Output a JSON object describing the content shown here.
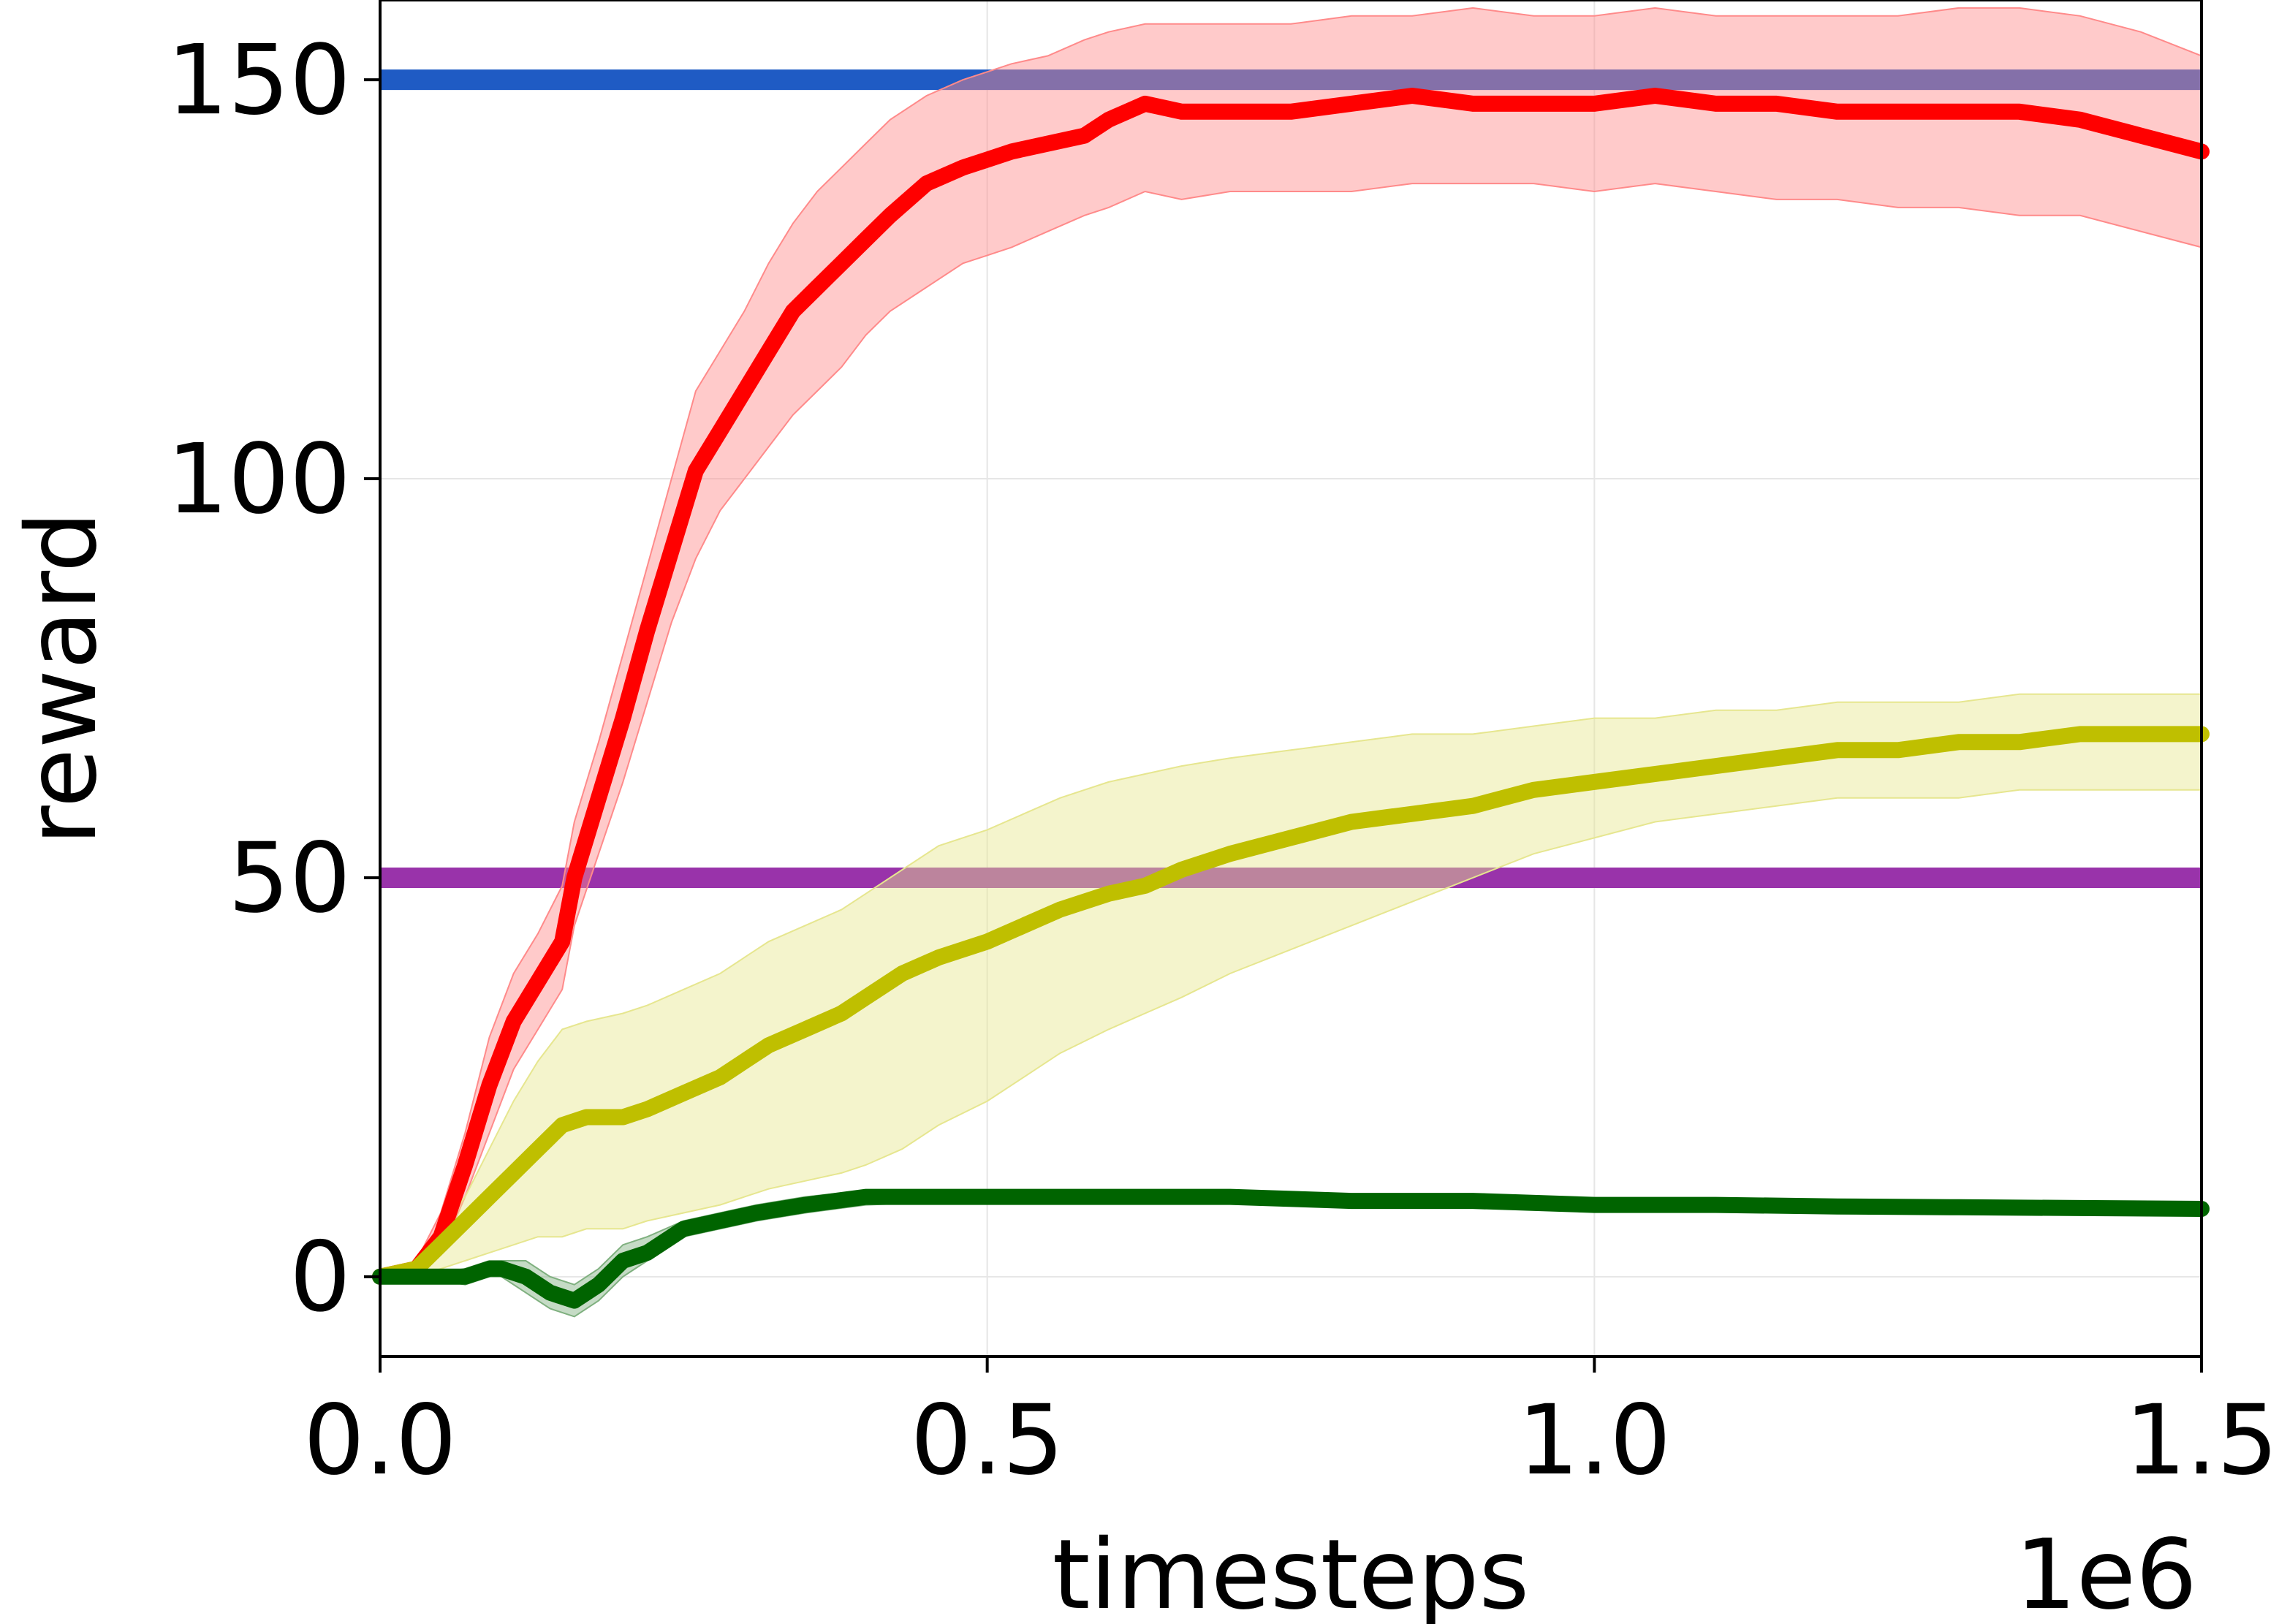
{
  "chart_data": {
    "type": "line",
    "title": "",
    "xlabel": "timesteps",
    "ylabel": "reward",
    "x_offset_label": "1e6",
    "xlim": [
      0,
      1.5
    ],
    "ylim": [
      -10,
      160
    ],
    "xticks": [
      {
        "value": 0.0,
        "label": "0.0"
      },
      {
        "value": 0.5,
        "label": "0.5"
      },
      {
        "value": 1.0,
        "label": "1.0"
      },
      {
        "value": 1.5,
        "label": "1.5"
      }
    ],
    "yticks": [
      {
        "value": 0,
        "label": "0"
      },
      {
        "value": 50,
        "label": "50"
      },
      {
        "value": 100,
        "label": "100"
      },
      {
        "value": 150,
        "label": "150"
      }
    ],
    "grid": true,
    "legend": "none",
    "hlines": [
      {
        "value": 150,
        "color": "#1f5bc4"
      },
      {
        "value": 50,
        "color": "#9933aa"
      }
    ],
    "series": [
      {
        "color": "#ff0000",
        "band_color": "#ff8a8a",
        "x": [
          0,
          0.03,
          0.05,
          0.07,
          0.09,
          0.11,
          0.13,
          0.15,
          0.16,
          0.18,
          0.2,
          0.22,
          0.24,
          0.26,
          0.28,
          0.3,
          0.32,
          0.34,
          0.36,
          0.38,
          0.4,
          0.42,
          0.45,
          0.48,
          0.5,
          0.52,
          0.55,
          0.58,
          0.6,
          0.63,
          0.66,
          0.7,
          0.75,
          0.8,
          0.85,
          0.9,
          0.95,
          1.0,
          1.05,
          1.1,
          1.15,
          1.2,
          1.25,
          1.3,
          1.35,
          1.4,
          1.45,
          1.5
        ],
        "y": [
          0,
          1,
          5,
          14,
          24,
          32,
          37,
          42,
          50,
          60,
          70,
          81,
          91,
          101,
          106,
          111,
          116,
          121,
          124,
          127,
          130,
          133,
          137,
          139,
          140,
          141,
          142,
          143,
          145,
          147,
          146,
          146,
          146,
          147,
          148,
          147,
          147,
          147,
          148,
          147,
          147,
          146,
          146,
          146,
          146,
          145,
          143,
          141
        ],
        "lower": [
          0,
          0,
          3,
          10,
          18,
          26,
          31,
          36,
          44,
          53,
          62,
          72,
          82,
          90,
          96,
          100,
          104,
          108,
          111,
          114,
          118,
          121,
          124,
          127,
          128,
          129,
          131,
          133,
          134,
          136,
          135,
          136,
          136,
          136,
          137,
          137,
          137,
          136,
          137,
          136,
          135,
          135,
          134,
          134,
          133,
          133,
          131,
          129
        ],
        "upper": [
          0,
          2,
          8,
          18,
          30,
          38,
          43,
          49,
          57,
          67,
          78,
          89,
          100,
          111,
          116,
          121,
          127,
          132,
          136,
          139,
          142,
          145,
          148,
          150,
          151,
          152,
          153,
          155,
          156,
          157,
          157,
          157,
          157,
          158,
          158,
          159,
          158,
          158,
          159,
          158,
          158,
          158,
          158,
          159,
          159,
          158,
          156,
          153
        ]
      },
      {
        "color": "#bfbf00",
        "band_color": "#e6e68f",
        "x": [
          0,
          0.03,
          0.05,
          0.07,
          0.09,
          0.11,
          0.13,
          0.15,
          0.17,
          0.2,
          0.22,
          0.25,
          0.28,
          0.3,
          0.32,
          0.35,
          0.38,
          0.4,
          0.43,
          0.46,
          0.5,
          0.53,
          0.56,
          0.6,
          0.63,
          0.66,
          0.7,
          0.75,
          0.8,
          0.85,
          0.9,
          0.95,
          1.0,
          1.05,
          1.1,
          1.15,
          1.2,
          1.25,
          1.3,
          1.35,
          1.4,
          1.45,
          1.5
        ],
        "y": [
          0,
          1,
          4,
          7,
          10,
          13,
          16,
          19,
          20,
          20,
          21,
          23,
          25,
          27,
          29,
          31,
          33,
          35,
          38,
          40,
          42,
          44,
          46,
          48,
          49,
          51,
          53,
          55,
          57,
          58,
          59,
          61,
          62,
          63,
          64,
          65,
          66,
          66,
          67,
          67,
          68,
          68,
          68
        ],
        "lower": [
          0,
          0,
          1,
          2,
          3,
          4,
          5,
          5,
          6,
          6,
          7,
          8,
          9,
          10,
          11,
          12,
          13,
          14,
          16,
          19,
          22,
          25,
          28,
          31,
          33,
          35,
          38,
          41,
          44,
          47,
          50,
          53,
          55,
          57,
          58,
          59,
          60,
          60,
          60,
          61,
          61,
          61,
          61
        ],
        "upper": [
          0,
          2,
          6,
          10,
          16,
          22,
          27,
          31,
          32,
          33,
          34,
          36,
          38,
          40,
          42,
          44,
          46,
          48,
          51,
          54,
          56,
          58,
          60,
          62,
          63,
          64,
          65,
          66,
          67,
          68,
          68,
          69,
          70,
          70,
          71,
          71,
          72,
          72,
          72,
          73,
          73,
          73,
          73
        ]
      },
      {
        "color": "#006400",
        "band_color": "#7fb07f",
        "x": [
          0,
          0.03,
          0.05,
          0.07,
          0.09,
          0.1,
          0.12,
          0.14,
          0.16,
          0.18,
          0.2,
          0.22,
          0.25,
          0.28,
          0.31,
          0.35,
          0.4,
          0.45,
          0.5,
          0.6,
          0.7,
          0.8,
          0.9,
          1.0,
          1.1,
          1.2,
          1.3,
          1.4,
          1.5
        ],
        "y": [
          0,
          0,
          0,
          0,
          1,
          1,
          0,
          -2,
          -3,
          -1,
          2,
          3,
          6,
          7,
          8,
          9,
          10,
          10,
          10,
          10,
          10,
          9.5,
          9.5,
          9,
          9,
          8.8,
          8.7,
          8.6,
          8.5
        ],
        "lower": [
          0,
          0,
          -0.5,
          -1,
          0,
          0,
          -2,
          -4,
          -5,
          -3,
          0,
          2,
          5,
          6,
          7,
          8,
          9,
          9.3,
          9.3,
          9.3,
          9.2,
          8.9,
          8.9,
          8.4,
          8.3,
          8.1,
          8,
          7.9,
          7.8
        ],
        "upper": [
          0,
          0,
          0.5,
          1,
          2,
          2,
          2,
          0,
          -1,
          1,
          4,
          5,
          7,
          8,
          9,
          10,
          10.8,
          10.8,
          10.8,
          10.8,
          10.8,
          10.2,
          10.2,
          9.7,
          9.7,
          9.5,
          9.4,
          9.3,
          9.2
        ]
      }
    ]
  }
}
